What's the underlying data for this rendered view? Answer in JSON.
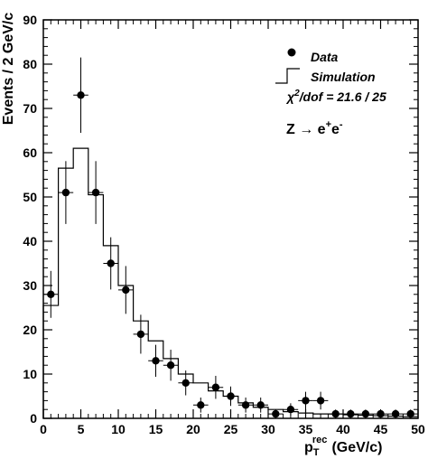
{
  "chart_data": {
    "type": "scatter",
    "title": "",
    "xlabel": "p_T^rec (GeV/c)",
    "xlabel_main": "p",
    "xlabel_sub": "T",
    "xlabel_sup": "rec",
    "xlabel_unit": "(GeV/c)",
    "ylabel": "Events / 2 GeV/c",
    "xlim": [
      0,
      50
    ],
    "ylim": [
      0,
      90
    ],
    "x_ticks": [
      0,
      5,
      10,
      15,
      20,
      25,
      30,
      35,
      40,
      45,
      50
    ],
    "y_ticks": [
      0,
      10,
      20,
      30,
      40,
      50,
      60,
      70,
      80,
      90
    ],
    "grid": false,
    "legend": {
      "placement": "top-right",
      "data_label": "Data",
      "sim_label": "Simulation",
      "chi2_label": "χ²/dof = 21.6 / 25",
      "chi2_chi": "χ",
      "chi2_exp": "2",
      "chi2_rest": "/dof = 21.6 / 25",
      "process": "Z → e⁺e⁻",
      "process_base": "Z → e",
      "process_sup1": "+",
      "process_mid": "e",
      "process_sup2": "-"
    },
    "series": [
      {
        "name": "Data",
        "kind": "points_with_errors",
        "x": [
          1,
          3,
          5,
          7,
          9,
          11,
          13,
          15,
          17,
          19,
          21,
          23,
          25,
          27,
          29,
          31,
          33,
          35,
          37,
          39,
          41,
          43,
          45,
          47,
          49
        ],
        "y": [
          28,
          51,
          73,
          51,
          35,
          29,
          19,
          13,
          12,
          8,
          3,
          7,
          5,
          3,
          3,
          1,
          2,
          4,
          4,
          1,
          1,
          1,
          1,
          1,
          1
        ],
        "yerr": [
          5.3,
          7.1,
          8.5,
          7.1,
          5.9,
          5.4,
          4.4,
          3.6,
          3.5,
          2.8,
          1.7,
          2.6,
          2.2,
          1.7,
          1.7,
          1,
          1.4,
          2,
          2,
          1,
          1,
          1,
          1,
          1,
          1
        ],
        "xerr": 1
      },
      {
        "name": "Simulation",
        "kind": "step_histogram",
        "bin_edges": [
          0,
          2,
          4,
          6,
          8,
          10,
          12,
          14,
          16,
          18,
          20,
          22,
          24,
          26,
          28,
          30,
          32,
          34,
          36,
          38,
          40,
          42,
          44,
          46,
          48,
          50
        ],
        "values": [
          25.5,
          56.5,
          61,
          50.5,
          39,
          30,
          22,
          17.5,
          13.5,
          10,
          8,
          6.2,
          5,
          3.5,
          2.5,
          2,
          1.5,
          1.2,
          1,
          1,
          0.8,
          0.7,
          0.6,
          0.5,
          0.4
        ]
      }
    ]
  }
}
